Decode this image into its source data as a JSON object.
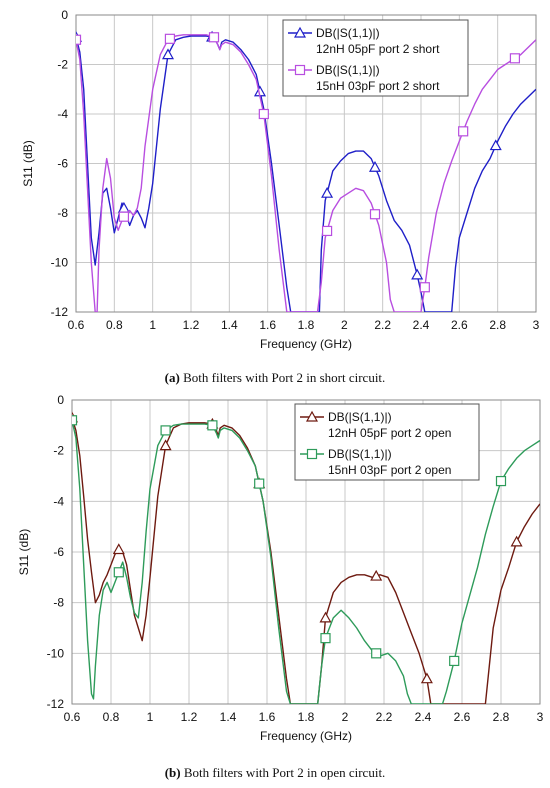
{
  "chart_data": [
    {
      "type": "line",
      "panel": "a",
      "caption_letter": "(a)",
      "caption_text": " Both filters with Port 2 in short circuit.",
      "xlabel": "Frequency (GHz)",
      "ylabel": "S11 (dB)",
      "xlim": [
        0.6,
        3.0
      ],
      "ylim": [
        -12,
        0
      ],
      "xticks": [
        0.6,
        0.8,
        1,
        1.2,
        1.4,
        1.6,
        1.8,
        2,
        2.2,
        2.4,
        2.6,
        2.8,
        3
      ],
      "xtick_labels": [
        "0.6",
        "0.8",
        "1",
        "1.2",
        "1.4",
        "1.6",
        "1.8",
        "2",
        "2.2",
        "2.4",
        "2.6",
        "2.8",
        "3"
      ],
      "yticks": [
        0,
        -2,
        -4,
        -6,
        -8,
        -10,
        -12
      ],
      "ytick_labels": [
        "0",
        "-2",
        "-4",
        "-6",
        "-8",
        "-10",
        "-12"
      ],
      "grid": true,
      "legend_position": "top-right",
      "series": [
        {
          "name": "DB(|S(1,1)|)",
          "name2": "12nH 05pF port 2 short",
          "color": "#1f1fc8",
          "marker": "triangle",
          "x": [
            0.6,
            0.62,
            0.64,
            0.66,
            0.68,
            0.7,
            0.72,
            0.74,
            0.76,
            0.78,
            0.8,
            0.82,
            0.84,
            0.86,
            0.88,
            0.9,
            0.92,
            0.94,
            0.96,
            0.98,
            1.0,
            1.04,
            1.08,
            1.12,
            1.16,
            1.2,
            1.24,
            1.28,
            1.32,
            1.34,
            1.35,
            1.36,
            1.38,
            1.42,
            1.46,
            1.5,
            1.54,
            1.58,
            1.62,
            1.66,
            1.7,
            1.72,
            1.74,
            1.75,
            1.78,
            1.84,
            1.87,
            1.88,
            1.9,
            1.94,
            1.98,
            2.02,
            2.06,
            2.1,
            2.14,
            2.18,
            2.22,
            2.26,
            2.3,
            2.34,
            2.38,
            2.4,
            2.42,
            2.44,
            2.45,
            2.56,
            2.58,
            2.6,
            2.64,
            2.68,
            2.72,
            2.76,
            2.8,
            2.84,
            2.88,
            2.92,
            2.96,
            3.0
          ],
          "y": [
            -0.9,
            -1.5,
            -3.0,
            -6.0,
            -9.0,
            -10.1,
            -8.8,
            -7.2,
            -7.0,
            -7.8,
            -8.8,
            -8.2,
            -7.6,
            -8.0,
            -8.5,
            -8.1,
            -7.9,
            -8.2,
            -8.6,
            -7.8,
            -6.8,
            -3.8,
            -1.6,
            -1.0,
            -0.9,
            -0.85,
            -0.85,
            -0.85,
            -0.9,
            -1.2,
            -1.4,
            -1.1,
            -1.0,
            -1.1,
            -1.4,
            -1.8,
            -2.4,
            -3.8,
            -6.0,
            -8.5,
            -11.0,
            -12.0,
            -12.0,
            -12.0,
            -12.0,
            -12.0,
            -12.0,
            -9.5,
            -7.5,
            -6.3,
            -5.9,
            -5.6,
            -5.5,
            -5.5,
            -5.8,
            -6.5,
            -7.5,
            -8.3,
            -8.7,
            -9.3,
            -10.5,
            -11.2,
            -12.0,
            -12.0,
            -12.0,
            -12.0,
            -10.2,
            -9.0,
            -8.0,
            -7.0,
            -6.3,
            -5.8,
            -5.1,
            -4.5,
            -4.0,
            -3.6,
            -3.3,
            -3.0
          ],
          "marker_x": [
            0.6,
            0.85,
            1.08,
            1.31,
            1.56,
            1.91,
            2.16,
            2.38,
            2.79
          ]
        },
        {
          "name": "DB(|S(1,1)|)",
          "name2": "15nH 03pF port 2 short",
          "color": "#b84ee0",
          "marker": "square",
          "x": [
            0.6,
            0.62,
            0.64,
            0.66,
            0.68,
            0.7,
            0.71,
            0.72,
            0.74,
            0.76,
            0.78,
            0.8,
            0.82,
            0.84,
            0.86,
            0.88,
            0.9,
            0.92,
            0.94,
            0.96,
            1.0,
            1.04,
            1.08,
            1.12,
            1.16,
            1.2,
            1.24,
            1.28,
            1.32,
            1.34,
            1.35,
            1.36,
            1.38,
            1.42,
            1.46,
            1.5,
            1.54,
            1.58,
            1.62,
            1.66,
            1.7,
            1.71,
            1.72,
            1.86,
            1.88,
            1.9,
            1.94,
            1.98,
            2.02,
            2.06,
            2.1,
            2.14,
            2.18,
            2.22,
            2.24,
            2.26,
            2.4,
            2.42,
            2.44,
            2.48,
            2.52,
            2.56,
            2.6,
            2.64,
            2.68,
            2.72,
            2.76,
            2.8,
            2.84,
            2.88,
            2.92,
            2.96,
            3.0
          ],
          "y": [
            -1.0,
            -1.8,
            -4.0,
            -7.0,
            -10.0,
            -12.0,
            -12.0,
            -9.5,
            -7.0,
            -5.8,
            -6.6,
            -8.2,
            -8.7,
            -8.3,
            -8.0,
            -7.9,
            -8.1,
            -7.8,
            -7.0,
            -5.3,
            -3.0,
            -1.6,
            -1.0,
            -0.85,
            -0.8,
            -0.8,
            -0.8,
            -0.8,
            -0.9,
            -1.2,
            -1.4,
            -1.2,
            -1.1,
            -1.2,
            -1.5,
            -2.0,
            -2.6,
            -4.0,
            -6.5,
            -9.5,
            -12.0,
            -12.0,
            -12.0,
            -12.0,
            -10.8,
            -9.0,
            -7.9,
            -7.4,
            -7.2,
            -7.0,
            -7.1,
            -7.6,
            -8.5,
            -10.0,
            -11.5,
            -12.0,
            -12.0,
            -11.0,
            -9.8,
            -8.0,
            -6.8,
            -5.9,
            -5.1,
            -4.3,
            -3.6,
            -3.0,
            -2.6,
            -2.2,
            -2.0,
            -1.8,
            -1.6,
            -1.3,
            -1.0
          ],
          "marker_x": [
            0.6,
            0.85,
            1.09,
            1.32,
            1.58,
            1.91,
            2.16,
            2.42,
            2.62,
            2.89
          ]
        }
      ]
    },
    {
      "type": "line",
      "panel": "b",
      "caption_letter": "(b)",
      "caption_text": " Both filters with Port 2 in open circuit.",
      "xlabel": "Frequency (GHz)",
      "ylabel": "S11 (dB)",
      "xlim": [
        0.6,
        3.0
      ],
      "ylim": [
        -12,
        0
      ],
      "xticks": [
        0.6,
        0.8,
        1,
        1.2,
        1.4,
        1.6,
        1.8,
        2,
        2.2,
        2.4,
        2.6,
        2.8,
        3
      ],
      "xtick_labels": [
        "0.6",
        "0.8",
        "1",
        "1.2",
        "1.4",
        "1.6",
        "1.8",
        "2",
        "2.2",
        "2.4",
        "2.6",
        "2.8",
        "3"
      ],
      "yticks": [
        0,
        -2,
        -4,
        -6,
        -8,
        -10,
        -12
      ],
      "ytick_labels": [
        "0",
        "-2",
        "-4",
        "-6",
        "-8",
        "-10",
        "-12"
      ],
      "grid": true,
      "legend_position": "top-right",
      "series": [
        {
          "name": "DB(|S(1,1)|)",
          "name2": "12nH 05pF port 2 open",
          "color": "#6e1a10",
          "marker": "triangle",
          "x": [
            0.6,
            0.62,
            0.64,
            0.66,
            0.68,
            0.7,
            0.72,
            0.74,
            0.76,
            0.78,
            0.8,
            0.82,
            0.84,
            0.86,
            0.88,
            0.9,
            0.92,
            0.94,
            0.96,
            0.98,
            1.0,
            1.04,
            1.08,
            1.12,
            1.16,
            1.2,
            1.24,
            1.28,
            1.32,
            1.34,
            1.35,
            1.36,
            1.38,
            1.42,
            1.46,
            1.5,
            1.54,
            1.58,
            1.62,
            1.66,
            1.7,
            1.72,
            1.74,
            1.76,
            1.86,
            1.88,
            1.9,
            1.94,
            1.98,
            2.02,
            2.06,
            2.1,
            2.14,
            2.18,
            2.22,
            2.26,
            2.3,
            2.34,
            2.38,
            2.42,
            2.44,
            2.45,
            2.72,
            2.74,
            2.76,
            2.8,
            2.84,
            2.88,
            2.92,
            2.96,
            3.0
          ],
          "y": [
            -0.7,
            -1.2,
            -2.2,
            -3.8,
            -5.5,
            -6.8,
            -8.0,
            -7.7,
            -7.2,
            -6.9,
            -6.5,
            -6.1,
            -5.9,
            -6.0,
            -6.5,
            -7.5,
            -8.5,
            -9.0,
            -9.5,
            -8.5,
            -7.0,
            -3.8,
            -1.8,
            -1.1,
            -0.95,
            -0.9,
            -0.9,
            -0.9,
            -0.95,
            -1.2,
            -1.4,
            -1.1,
            -1.0,
            -1.1,
            -1.4,
            -1.9,
            -2.6,
            -4.0,
            -6.0,
            -8.5,
            -11.0,
            -12.0,
            -12.0,
            -12.0,
            -12.0,
            -10.5,
            -8.6,
            -7.6,
            -7.2,
            -7.0,
            -6.9,
            -6.9,
            -7.0,
            -6.9,
            -7.0,
            -7.6,
            -8.4,
            -9.2,
            -10.0,
            -11.0,
            -12.0,
            -12.0,
            -12.0,
            -10.5,
            -9.0,
            -7.5,
            -6.6,
            -5.6,
            -5.0,
            -4.5,
            -4.1
          ],
          "marker_x": [
            0.6,
            0.84,
            1.08,
            1.32,
            1.56,
            1.9,
            2.16,
            2.42,
            2.88
          ]
        },
        {
          "name": "DB(|S(1,1)|)",
          "name2": "15nH 03pF port 2 open",
          "color": "#2e9b5a",
          "marker": "square",
          "x": [
            0.6,
            0.62,
            0.64,
            0.66,
            0.68,
            0.7,
            0.71,
            0.72,
            0.74,
            0.76,
            0.78,
            0.8,
            0.82,
            0.84,
            0.86,
            0.88,
            0.9,
            0.92,
            0.94,
            0.96,
            0.98,
            1.0,
            1.04,
            1.08,
            1.12,
            1.16,
            1.2,
            1.24,
            1.28,
            1.32,
            1.34,
            1.35,
            1.36,
            1.38,
            1.42,
            1.46,
            1.5,
            1.54,
            1.58,
            1.62,
            1.66,
            1.7,
            1.72,
            1.74,
            1.86,
            1.88,
            1.9,
            1.94,
            1.98,
            2.02,
            2.06,
            2.1,
            2.14,
            2.18,
            2.22,
            2.26,
            2.3,
            2.32,
            2.34,
            2.36,
            2.5,
            2.52,
            2.56,
            2.6,
            2.64,
            2.68,
            2.72,
            2.76,
            2.8,
            2.84,
            2.88,
            2.92,
            2.96,
            3.0
          ],
          "y": [
            -0.8,
            -1.5,
            -3.5,
            -6.5,
            -9.5,
            -11.6,
            -11.8,
            -10.5,
            -8.5,
            -7.5,
            -7.2,
            -7.6,
            -7.2,
            -6.8,
            -6.4,
            -7.0,
            -7.8,
            -8.4,
            -8.6,
            -7.2,
            -5.2,
            -3.5,
            -1.8,
            -1.2,
            -1.0,
            -0.95,
            -0.95,
            -0.95,
            -0.95,
            -1.0,
            -1.3,
            -1.5,
            -1.2,
            -1.1,
            -1.2,
            -1.5,
            -2.0,
            -2.6,
            -4.0,
            -6.2,
            -9.0,
            -11.5,
            -12.0,
            -12.0,
            -12.0,
            -10.5,
            -9.4,
            -8.6,
            -8.3,
            -8.6,
            -9.0,
            -9.5,
            -9.9,
            -10.1,
            -10.0,
            -10.3,
            -10.9,
            -11.6,
            -12.0,
            -12.0,
            -12.0,
            -11.5,
            -10.3,
            -8.8,
            -7.7,
            -6.6,
            -5.3,
            -4.2,
            -3.2,
            -2.7,
            -2.3,
            -2.0,
            -1.8,
            -1.6
          ],
          "marker_x": [
            0.6,
            0.84,
            1.08,
            1.32,
            1.56,
            1.9,
            2.16,
            2.56,
            2.8
          ]
        }
      ]
    }
  ]
}
